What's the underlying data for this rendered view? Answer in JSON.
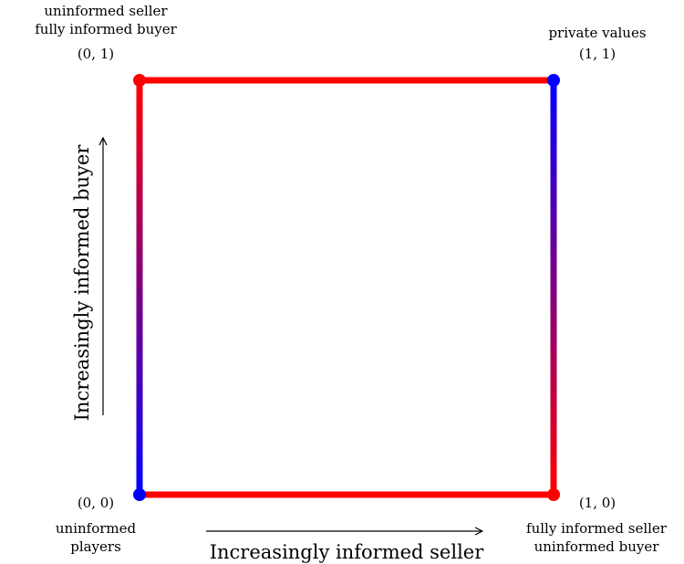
{
  "corners": {
    "top_left": {
      "coord": "(0, 1)",
      "line1": "uninformed seller",
      "line2": "fully informed buyer",
      "dot_color": "#ff0000"
    },
    "top_right": {
      "coord": "(1, 1)",
      "line1": "private values",
      "dot_color": "#0000ff"
    },
    "bottom_left": {
      "coord": "(0, 0)",
      "line1": "uninformed",
      "line2": "players",
      "dot_color": "#0000ff"
    },
    "bottom_right": {
      "coord": "(1, 0)",
      "line1": "fully informed seller",
      "line2": "uninformed buyer",
      "dot_color": "#ff0000"
    }
  },
  "axes": {
    "x_label": "Increasingly informed seller",
    "y_label": "Increasingly informed buyer"
  },
  "colors": {
    "red": "#ff0000",
    "blue": "#0000ff",
    "arrow": "#000000"
  }
}
